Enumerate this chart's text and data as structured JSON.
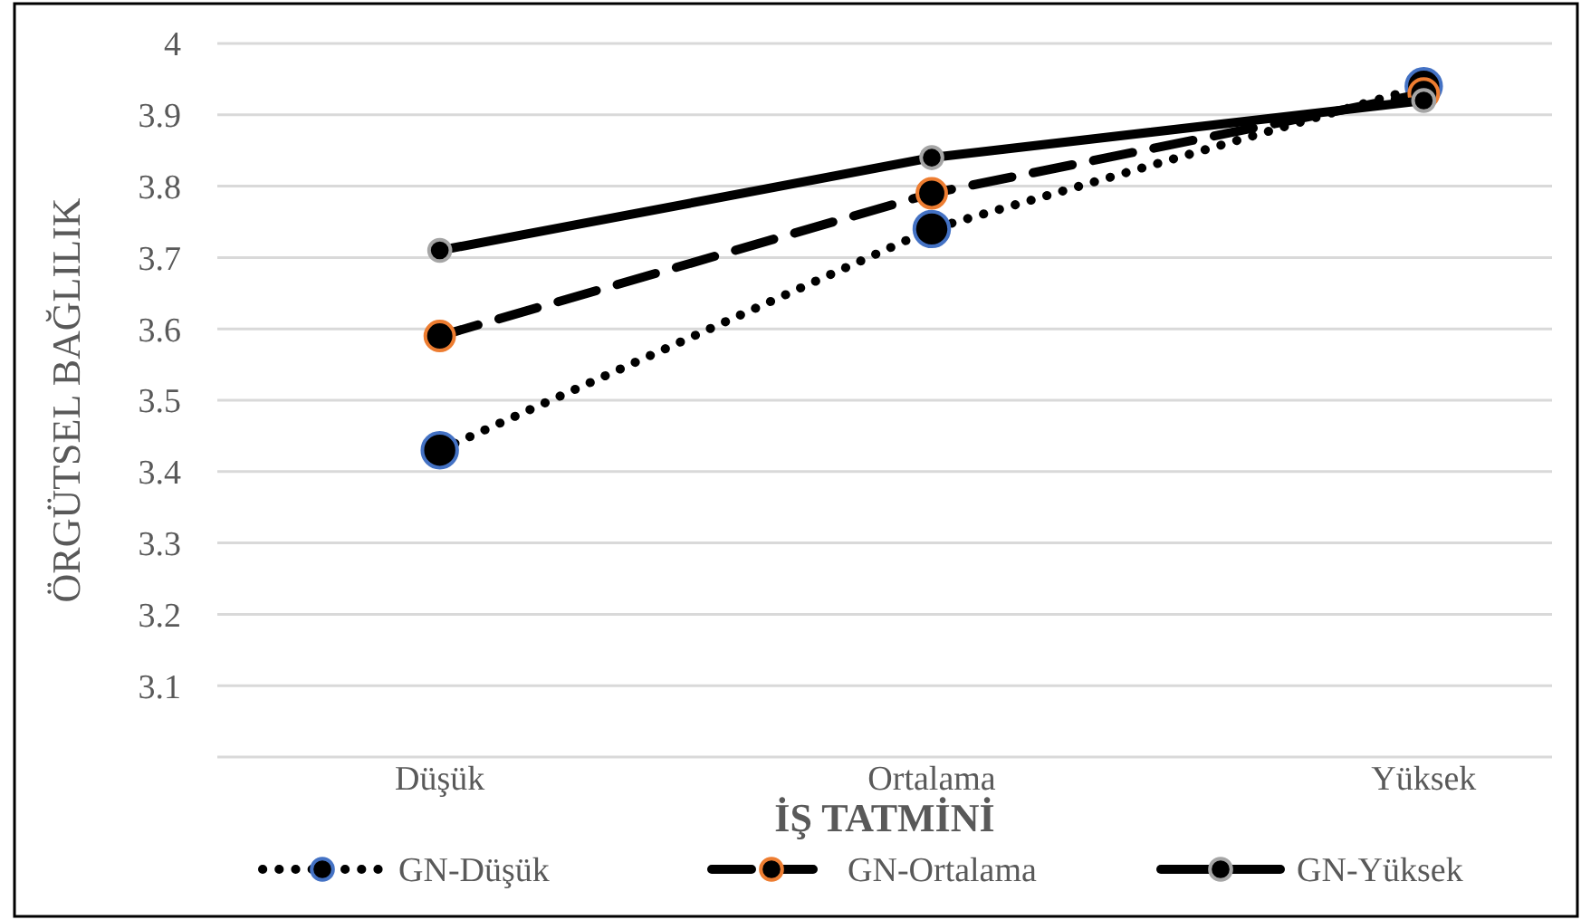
{
  "chart_data": {
    "type": "line",
    "xlabel": "İŞ TATMİNİ",
    "ylabel": "ÖRGÜTSEL BAĞLILIK",
    "categories": [
      "Düşük",
      "Ortalama",
      "Yüksek"
    ],
    "series": [
      {
        "name": "GN-Düşük",
        "color": "#4472c4",
        "line_style": "dotted",
        "values": [
          3.43,
          3.74,
          3.94
        ]
      },
      {
        "name": "GN-Ortalama",
        "color": "#ed7d31",
        "line_style": "dashed",
        "values": [
          3.59,
          3.79,
          3.93
        ]
      },
      {
        "name": "GN-Yüksek",
        "color": "#a5a5a5",
        "line_style": "solid",
        "values": [
          3.71,
          3.84,
          3.92
        ]
      }
    ],
    "ylim": [
      3,
      4
    ],
    "yticks": [
      {
        "value": 3,
        "label": null
      },
      3.1,
      3.2,
      3.3,
      3.4,
      3.5,
      3.6,
      3.7,
      3.8,
      3.9,
      4
    ],
    "grid": "y",
    "legend": "bottom",
    "marker": "circle"
  }
}
